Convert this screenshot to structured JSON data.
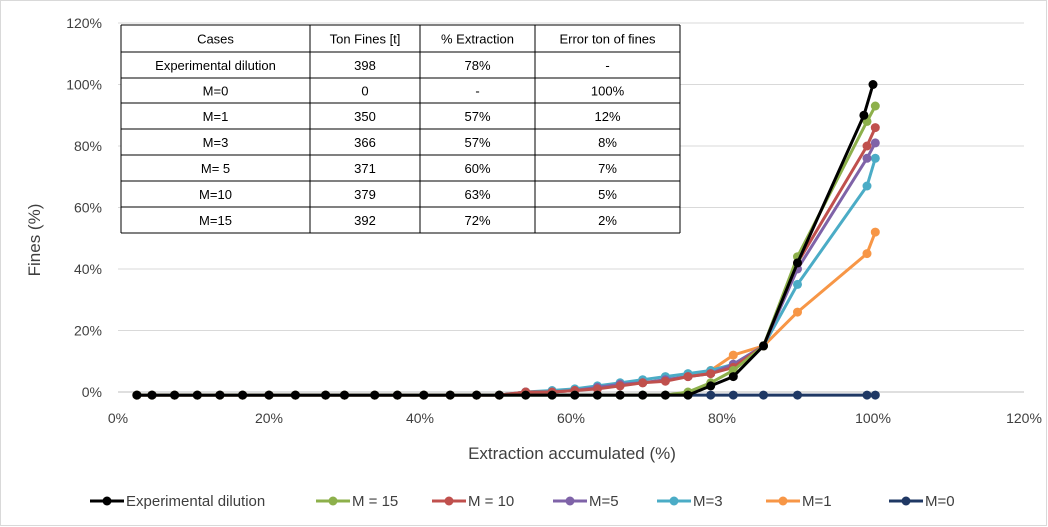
{
  "chart_data": {
    "type": "line",
    "title": "",
    "xlabel": "Extraction accumulated (%)",
    "ylabel": "Fines (%)",
    "xlim": [
      0,
      120
    ],
    "ylim": [
      0,
      120
    ],
    "x_ticks": [
      0,
      20,
      40,
      60,
      80,
      100,
      120
    ],
    "x_tick_labels": [
      "0%",
      "20%",
      "40%",
      "60%",
      "80%",
      "100%",
      "120%"
    ],
    "y_ticks": [
      0,
      20,
      40,
      60,
      80,
      100,
      120
    ],
    "y_tick_labels": [
      "0%",
      "20%",
      "40%",
      "60%",
      "80%",
      "100%",
      "120%"
    ],
    "grid": "horizontal",
    "legend_position": "bottom",
    "series": [
      {
        "name": "Experimental dilution",
        "color": "#000000",
        "points": [
          [
            2.5,
            -1
          ],
          [
            4.5,
            -1
          ],
          [
            7.5,
            -1
          ],
          [
            10.5,
            -1
          ],
          [
            13.5,
            -1
          ],
          [
            16.5,
            -1
          ],
          [
            20,
            -1
          ],
          [
            23.5,
            -1
          ],
          [
            27.5,
            -1
          ],
          [
            30,
            -1
          ],
          [
            34,
            -1
          ],
          [
            37,
            -1
          ],
          [
            40.5,
            -1
          ],
          [
            44,
            -1
          ],
          [
            47.5,
            -1
          ],
          [
            50.5,
            -1
          ],
          [
            54,
            -1
          ],
          [
            57.5,
            -1
          ],
          [
            60.5,
            -1
          ],
          [
            63.5,
            -1
          ],
          [
            66.5,
            -1
          ],
          [
            69.5,
            -1
          ],
          [
            72.5,
            -1
          ],
          [
            75.5,
            -1
          ],
          [
            78.5,
            2
          ],
          [
            81.5,
            5
          ],
          [
            85.5,
            15
          ],
          [
            90,
            42
          ],
          [
            98.8,
            90
          ],
          [
            100,
            100
          ]
        ]
      },
      {
        "name": "M = 15",
        "color": "#8db04b",
        "points": [
          [
            2.5,
            -1
          ],
          [
            4.5,
            -1
          ],
          [
            7.5,
            -1
          ],
          [
            10.5,
            -1
          ],
          [
            13.5,
            -1
          ],
          [
            16.5,
            -1
          ],
          [
            20,
            -1
          ],
          [
            23.5,
            -1
          ],
          [
            27.5,
            -1
          ],
          [
            30,
            -1
          ],
          [
            34,
            -1
          ],
          [
            37,
            -1
          ],
          [
            40.5,
            -1
          ],
          [
            44,
            -1
          ],
          [
            47.5,
            -1
          ],
          [
            50.5,
            -1
          ],
          [
            54,
            -1
          ],
          [
            57.5,
            -1
          ],
          [
            60.5,
            -1
          ],
          [
            63.5,
            -1
          ],
          [
            66.5,
            -1
          ],
          [
            69.5,
            -1
          ],
          [
            72.5,
            -1
          ],
          [
            75.5,
            0
          ],
          [
            78.5,
            3
          ],
          [
            81.5,
            7
          ],
          [
            85.5,
            15
          ],
          [
            90,
            44
          ],
          [
            99.2,
            88
          ],
          [
            100.3,
            93
          ]
        ]
      },
      {
        "name": "M = 10",
        "color": "#c0504d",
        "points": [
          [
            2.5,
            -1
          ],
          [
            4.5,
            -1
          ],
          [
            7.5,
            -1
          ],
          [
            10.5,
            -1
          ],
          [
            13.5,
            -1
          ],
          [
            16.5,
            -1
          ],
          [
            20,
            -1
          ],
          [
            23.5,
            -1
          ],
          [
            27.5,
            -1
          ],
          [
            30,
            -1
          ],
          [
            34,
            -1
          ],
          [
            37,
            -1
          ],
          [
            40.5,
            -1
          ],
          [
            44,
            -1
          ],
          [
            47.5,
            -1
          ],
          [
            50.5,
            -1
          ],
          [
            54,
            0
          ],
          [
            57.5,
            0
          ],
          [
            60.5,
            0.5
          ],
          [
            63.5,
            1
          ],
          [
            66.5,
            2
          ],
          [
            69.5,
            3
          ],
          [
            72.5,
            3.5
          ],
          [
            75.5,
            5
          ],
          [
            78.5,
            6
          ],
          [
            81.5,
            8
          ],
          [
            85.5,
            15
          ],
          [
            90,
            42
          ],
          [
            99.2,
            80
          ],
          [
            100.3,
            86
          ]
        ]
      },
      {
        "name": "M=5",
        "color": "#7f63a8",
        "points": [
          [
            2.5,
            -1
          ],
          [
            4.5,
            -1
          ],
          [
            7.5,
            -1
          ],
          [
            10.5,
            -1
          ],
          [
            13.5,
            -1
          ],
          [
            16.5,
            -1
          ],
          [
            20,
            -1
          ],
          [
            23.5,
            -1
          ],
          [
            27.5,
            -1
          ],
          [
            30,
            -1
          ],
          [
            34,
            -1
          ],
          [
            37,
            -1
          ],
          [
            40.5,
            -1
          ],
          [
            44,
            -1
          ],
          [
            47.5,
            -1
          ],
          [
            50.5,
            -1
          ],
          [
            54,
            0
          ],
          [
            57.5,
            0
          ],
          [
            60.5,
            0.5
          ],
          [
            63.5,
            1.5
          ],
          [
            66.5,
            2.5
          ],
          [
            69.5,
            3
          ],
          [
            72.5,
            4
          ],
          [
            75.5,
            5
          ],
          [
            78.5,
            6
          ],
          [
            81.5,
            9
          ],
          [
            85.5,
            15
          ],
          [
            90,
            40
          ],
          [
            99.2,
            76
          ],
          [
            100.3,
            81
          ]
        ]
      },
      {
        "name": "M=3",
        "color": "#4bacc6",
        "points": [
          [
            2.5,
            -1
          ],
          [
            4.5,
            -1
          ],
          [
            7.5,
            -1
          ],
          [
            10.5,
            -1
          ],
          [
            13.5,
            -1
          ],
          [
            16.5,
            -1
          ],
          [
            20,
            -1
          ],
          [
            23.5,
            -1
          ],
          [
            27.5,
            -1
          ],
          [
            30,
            -1
          ],
          [
            34,
            -1
          ],
          [
            37,
            -1
          ],
          [
            40.5,
            -1
          ],
          [
            44,
            -1
          ],
          [
            47.5,
            -1
          ],
          [
            50.5,
            -1
          ],
          [
            54,
            0
          ],
          [
            57.5,
            0.5
          ],
          [
            60.5,
            1
          ],
          [
            63.5,
            2
          ],
          [
            66.5,
            3
          ],
          [
            69.5,
            4
          ],
          [
            72.5,
            5
          ],
          [
            75.5,
            6
          ],
          [
            78.5,
            7
          ],
          [
            81.5,
            9
          ],
          [
            85.5,
            15
          ],
          [
            90,
            35
          ],
          [
            99.2,
            67
          ],
          [
            100.3,
            76
          ]
        ]
      },
      {
        "name": "M=1",
        "color": "#f79646",
        "points": [
          [
            2.5,
            -1
          ],
          [
            4.5,
            -1
          ],
          [
            7.5,
            -1
          ],
          [
            10.5,
            -1
          ],
          [
            13.5,
            -1
          ],
          [
            16.5,
            -1
          ],
          [
            20,
            -1
          ],
          [
            23.5,
            -1
          ],
          [
            27.5,
            -1
          ],
          [
            30,
            -1
          ],
          [
            34,
            -1
          ],
          [
            37,
            -1
          ],
          [
            40.5,
            -1
          ],
          [
            44,
            -1
          ],
          [
            47.5,
            -1
          ],
          [
            50.5,
            -1
          ],
          [
            54,
            0
          ],
          [
            57.5,
            0
          ],
          [
            60.5,
            0.5
          ],
          [
            63.5,
            1.5
          ],
          [
            66.5,
            2.5
          ],
          [
            69.5,
            3
          ],
          [
            72.5,
            4
          ],
          [
            75.5,
            5
          ],
          [
            78.5,
            7
          ],
          [
            81.5,
            12
          ],
          [
            85.5,
            15
          ],
          [
            90,
            26
          ],
          [
            99.2,
            45
          ],
          [
            100.3,
            52
          ]
        ]
      },
      {
        "name": "M=0",
        "color": "#1f3864",
        "points": [
          [
            2.5,
            -1
          ],
          [
            4.5,
            -1
          ],
          [
            7.5,
            -1
          ],
          [
            10.5,
            -1
          ],
          [
            13.5,
            -1
          ],
          [
            16.5,
            -1
          ],
          [
            20,
            -1
          ],
          [
            23.5,
            -1
          ],
          [
            27.5,
            -1
          ],
          [
            30,
            -1
          ],
          [
            34,
            -1
          ],
          [
            37,
            -1
          ],
          [
            40.5,
            -1
          ],
          [
            44,
            -1
          ],
          [
            47.5,
            -1
          ],
          [
            50.5,
            -1
          ],
          [
            54,
            -1
          ],
          [
            57.5,
            -1
          ],
          [
            60.5,
            -1
          ],
          [
            63.5,
            -1
          ],
          [
            66.5,
            -1
          ],
          [
            69.5,
            -1
          ],
          [
            72.5,
            -1
          ],
          [
            75.5,
            -1
          ],
          [
            78.5,
            -1
          ],
          [
            81.5,
            -1
          ],
          [
            85.5,
            -1
          ],
          [
            90,
            -1
          ],
          [
            99.2,
            -1
          ],
          [
            100.3,
            -1
          ]
        ]
      }
    ],
    "table": {
      "headers": [
        "Cases",
        "Ton Fines [t]",
        "% Extraction",
        "Error ton of fines"
      ],
      "rows": [
        [
          "Experimental dilution",
          "398",
          "78%",
          "-"
        ],
        [
          "M=0",
          "0",
          "-",
          "100%"
        ],
        [
          "M=1",
          "350",
          "57%",
          "12%"
        ],
        [
          "M=3",
          "366",
          "57%",
          "8%"
        ],
        [
          "M= 5",
          "371",
          "60%",
          "7%"
        ],
        [
          "M=10",
          "379",
          "63%",
          "5%"
        ],
        [
          "M=15",
          "392",
          "72%",
          "2%"
        ]
      ]
    }
  }
}
